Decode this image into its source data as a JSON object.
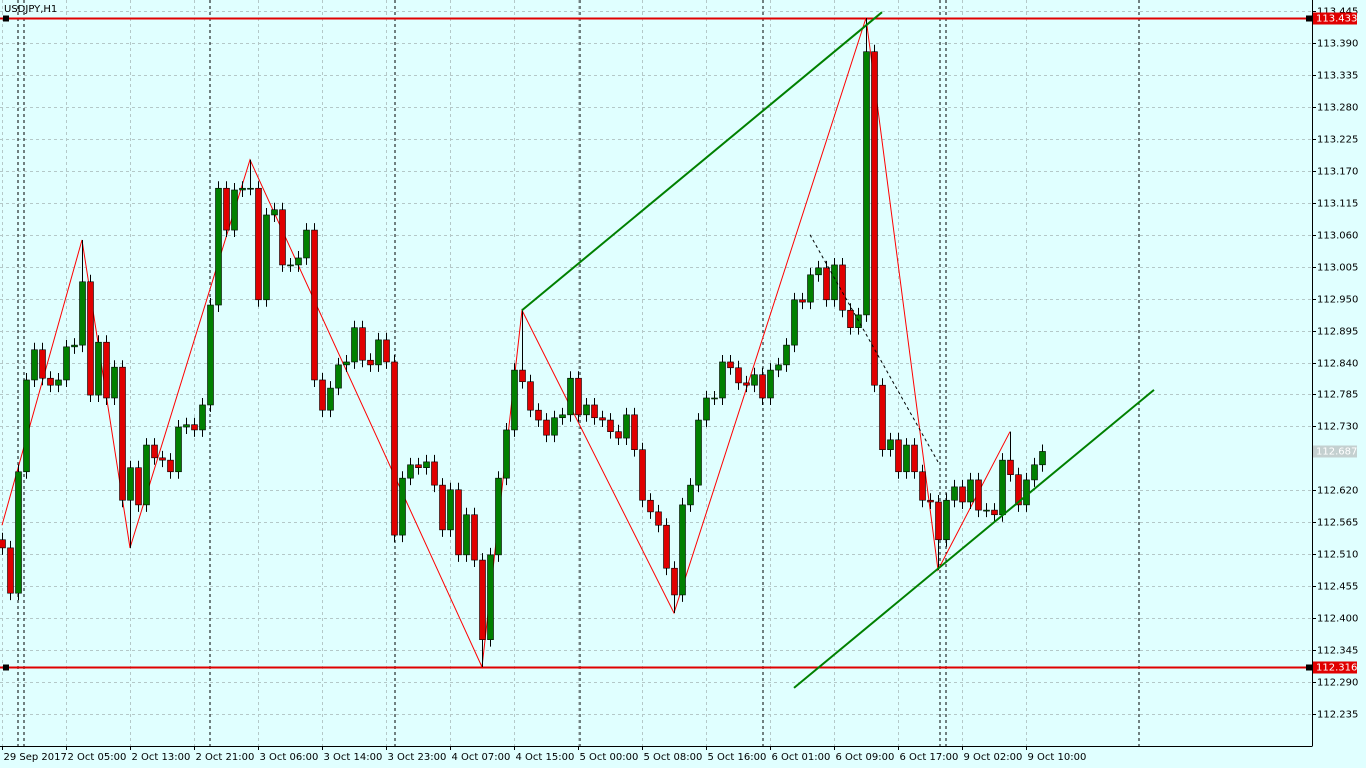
{
  "chart_data": {
    "type": "candlestick",
    "title": "USDJPY,H1",
    "categories": [
      "29 Sep 2017",
      null,
      null,
      null,
      null,
      null,
      null,
      null,
      "2 Oct 05:00",
      null,
      null,
      null,
      null,
      null,
      null,
      null,
      "2 Oct 13:00",
      null,
      null,
      null,
      null,
      null,
      null,
      null,
      "2 Oct 21:00",
      null,
      null,
      null,
      null,
      null,
      null,
      null,
      "3 Oct 06:00",
      null,
      null,
      null,
      null,
      null,
      null,
      null,
      "3 Oct 14:00",
      null,
      null,
      null,
      null,
      null,
      null,
      null,
      "3 Oct 23:00",
      null,
      null,
      null,
      null,
      null,
      null,
      null,
      "4 Oct 07:00",
      null,
      null,
      null,
      null,
      null,
      null,
      null,
      "4 Oct 15:00",
      null,
      null,
      null,
      null,
      null,
      null,
      null,
      "5 Oct 00:00",
      null,
      null,
      null,
      null,
      null,
      null,
      null,
      "5 Oct 08:00",
      null,
      null,
      null,
      null,
      null,
      null,
      null,
      "5 Oct 16:00",
      null,
      null,
      null,
      null,
      null,
      null,
      null,
      "6 Oct 01:00",
      null,
      null,
      null,
      null,
      null,
      null,
      null,
      "6 Oct 09:00",
      null,
      null,
      null,
      null,
      null,
      null,
      null,
      "6 Oct 17:00",
      null,
      null,
      null,
      null,
      null,
      null,
      null,
      "9 Oct 02:00",
      null,
      null,
      null,
      null,
      null,
      null,
      null,
      "9 Oct 10:00",
      null,
      null
    ],
    "open": [
      112.535,
      112.521,
      112.443,
      112.652,
      112.81,
      112.862,
      112.813,
      112.801,
      112.81,
      112.867,
      112.87,
      112.979,
      112.784,
      112.875,
      112.779,
      112.832,
      112.603,
      112.659,
      112.595,
      112.698,
      112.676,
      112.672,
      112.652,
      112.729,
      112.733,
      112.724,
      112.767,
      112.939,
      113.14,
      113.068,
      113.137,
      113.14,
      113.14,
      112.948,
      113.094,
      113.103,
      113.008,
      113.008,
      113.02,
      113.068,
      112.81,
      112.758,
      112.796,
      112.836,
      112.841,
      112.9,
      112.844,
      112.836,
      112.879,
      112.841,
      112.543,
      112.641,
      112.664,
      112.659,
      112.669,
      112.629,
      112.552,
      112.621,
      112.509,
      112.578,
      112.5,
      112.363,
      112.509,
      112.641,
      112.724,
      112.827,
      112.807,
      112.758,
      112.741,
      112.715,
      112.745,
      112.75,
      112.813,
      112.75,
      112.767,
      112.745,
      112.741,
      112.721,
      112.71,
      112.75,
      112.69,
      112.603,
      112.583,
      112.56,
      112.486,
      112.44,
      112.595,
      112.629,
      112.741,
      112.779,
      112.779,
      112.841,
      112.831,
      112.805,
      112.801,
      112.819,
      112.779,
      112.827,
      112.836,
      112.87,
      112.948,
      112.944,
      112.991,
      113.003,
      112.948,
      113.008,
      112.93,
      112.9,
      112.922,
      113.375,
      112.801,
      112.69,
      112.707,
      112.652,
      112.698,
      112.652,
      112.603,
      112.6,
      112.535,
      112.603,
      112.626,
      112.6,
      112.638,
      112.586,
      112.586,
      112.578,
      112.672,
      112.647,
      112.595,
      112.638,
      112.664
    ],
    "high": [
      112.547,
      112.533,
      112.664,
      112.822,
      112.874,
      112.874,
      112.825,
      112.822,
      112.879,
      112.882,
      113.051,
      112.991,
      112.887,
      112.887,
      112.844,
      112.844,
      112.671,
      112.671,
      112.71,
      112.71,
      112.688,
      112.684,
      112.741,
      112.745,
      112.745,
      112.779,
      112.951,
      113.152,
      113.152,
      113.149,
      113.152,
      113.189,
      113.152,
      113.106,
      113.115,
      113.115,
      113.02,
      113.032,
      113.08,
      113.08,
      112.822,
      112.808,
      112.848,
      112.853,
      112.912,
      112.912,
      112.856,
      112.891,
      112.891,
      112.853,
      112.653,
      112.676,
      112.676,
      112.681,
      112.681,
      112.641,
      112.633,
      112.633,
      112.59,
      112.59,
      112.512,
      112.521,
      112.653,
      112.736,
      112.839,
      112.931,
      112.819,
      112.77,
      112.753,
      112.757,
      112.762,
      112.825,
      112.825,
      112.779,
      112.779,
      112.757,
      112.753,
      112.733,
      112.762,
      112.762,
      112.702,
      112.615,
      112.595,
      112.572,
      112.498,
      112.607,
      112.641,
      112.753,
      112.791,
      112.791,
      112.853,
      112.853,
      112.843,
      112.817,
      112.831,
      112.831,
      112.839,
      112.848,
      112.882,
      112.96,
      112.96,
      113.003,
      113.015,
      113.015,
      113.02,
      113.02,
      112.942,
      112.934,
      113.433,
      113.387,
      112.813,
      112.719,
      112.719,
      112.71,
      112.71,
      112.664,
      112.615,
      112.612,
      112.615,
      112.638,
      112.638,
      112.65,
      112.65,
      112.598,
      112.598,
      112.684,
      112.721,
      112.659,
      112.65,
      112.676,
      112.699
    ],
    "low": [
      112.509,
      112.431,
      112.431,
      112.64,
      112.798,
      112.801,
      112.789,
      112.789,
      112.798,
      112.855,
      112.858,
      112.772,
      112.772,
      112.767,
      112.767,
      112.591,
      112.521,
      112.583,
      112.583,
      112.664,
      112.66,
      112.64,
      112.64,
      112.717,
      112.712,
      112.712,
      112.755,
      112.927,
      113.056,
      113.056,
      113.125,
      113.128,
      112.936,
      112.936,
      113.082,
      112.996,
      112.996,
      112.996,
      113.008,
      112.798,
      112.746,
      112.746,
      112.784,
      112.824,
      112.829,
      112.832,
      112.824,
      112.824,
      112.829,
      112.531,
      112.531,
      112.629,
      112.647,
      112.647,
      112.617,
      112.54,
      112.54,
      112.497,
      112.497,
      112.488,
      112.316,
      112.351,
      112.497,
      112.629,
      112.712,
      112.795,
      112.746,
      112.729,
      112.703,
      112.703,
      112.733,
      112.738,
      112.738,
      112.738,
      112.733,
      112.729,
      112.709,
      112.698,
      112.698,
      112.678,
      112.591,
      112.571,
      112.548,
      112.474,
      112.409,
      112.428,
      112.583,
      112.617,
      112.729,
      112.767,
      112.767,
      112.819,
      112.793,
      112.789,
      112.789,
      112.767,
      112.767,
      112.815,
      112.824,
      112.858,
      112.932,
      112.932,
      112.979,
      112.936,
      112.936,
      112.918,
      112.888,
      112.888,
      112.91,
      112.789,
      112.678,
      112.678,
      112.64,
      112.64,
      112.64,
      112.591,
      112.588,
      112.483,
      112.523,
      112.591,
      112.588,
      112.588,
      112.574,
      112.574,
      112.566,
      112.566,
      112.635,
      112.583,
      112.583,
      112.626,
      112.652
    ],
    "close": [
      112.521,
      112.443,
      112.652,
      112.81,
      112.862,
      112.813,
      112.801,
      112.81,
      112.867,
      112.87,
      112.979,
      112.784,
      112.875,
      112.779,
      112.832,
      112.603,
      112.659,
      112.595,
      112.698,
      112.676,
      112.672,
      112.652,
      112.729,
      112.733,
      112.724,
      112.767,
      112.939,
      113.14,
      113.068,
      113.137,
      113.14,
      113.14,
      112.948,
      113.094,
      113.103,
      113.008,
      113.008,
      113.02,
      113.068,
      112.81,
      112.758,
      112.796,
      112.836,
      112.841,
      112.9,
      112.844,
      112.836,
      112.879,
      112.841,
      112.543,
      112.641,
      112.664,
      112.659,
      112.669,
      112.629,
      112.552,
      112.621,
      112.509,
      112.578,
      112.5,
      112.363,
      112.509,
      112.641,
      112.724,
      112.827,
      112.807,
      112.758,
      112.741,
      112.715,
      112.745,
      112.75,
      112.813,
      112.75,
      112.767,
      112.745,
      112.741,
      112.721,
      112.71,
      112.75,
      112.69,
      112.603,
      112.583,
      112.56,
      112.486,
      112.44,
      112.595,
      112.629,
      112.741,
      112.779,
      112.779,
      112.841,
      112.831,
      112.805,
      112.801,
      112.819,
      112.779,
      112.827,
      112.836,
      112.87,
      112.948,
      112.944,
      112.991,
      113.003,
      112.948,
      113.008,
      112.93,
      112.9,
      112.922,
      113.375,
      112.801,
      112.69,
      112.707,
      112.652,
      112.698,
      112.652,
      112.603,
      112.6,
      112.535,
      112.603,
      112.626,
      112.6,
      112.638,
      112.586,
      112.586,
      112.578,
      112.672,
      112.647,
      112.595,
      112.638,
      112.664,
      112.687
    ],
    "colors": {
      "up": "#008000",
      "down": "#e00000",
      "wick": "#000000"
    },
    "ylim": [
      112.18,
      113.464
    ],
    "yticks": [
      112.235,
      {
        "value": 112.29,
        "label": "112.290"
      },
      112.345,
      {
        "value": 112.4,
        "label": "112.400"
      },
      112.455,
      {
        "value": 112.51,
        "label": "112.510"
      },
      112.565,
      {
        "value": 112.62,
        "label": "112.620"
      },
      {
        "value": 112.73,
        "label": "112.730"
      },
      112.785,
      {
        "value": 112.84,
        "label": "112.840"
      },
      112.895,
      {
        "value": 112.95,
        "label": "112.950"
      },
      113.005,
      {
        "value": 113.06,
        "label": "113.060"
      },
      113.115,
      {
        "value": 113.17,
        "label": "113.170"
      },
      113.225,
      {
        "value": 113.28,
        "label": "113.280"
      },
      113.335,
      {
        "value": 113.39,
        "label": "113.390"
      },
      113.445
    ],
    "grid": true,
    "levels": [
      {
        "value": 113.433,
        "color": "#e00000"
      },
      {
        "value": 112.316,
        "color": "#e00000"
      }
    ],
    "last_price": 112.687,
    "zigzag": {
      "x": [
        0,
        10,
        16,
        31,
        60,
        65,
        84,
        108,
        117,
        126
      ],
      "values": [
        112.56,
        113.051,
        112.521,
        113.189,
        112.316,
        112.93,
        112.409,
        113.433,
        112.483,
        112.721
      ],
      "color": "#ff0000"
    },
    "trendlines": [
      {
        "x": [
          65,
          110
        ],
        "values": [
          112.93,
          113.443
        ],
        "color": "#008000",
        "style": "solid"
      },
      {
        "x": [
          99,
          144
        ],
        "values": [
          112.28,
          112.793
        ],
        "color": "#008000",
        "style": "solid"
      },
      {
        "x": [
          101,
          117
        ],
        "values": [
          113.06,
          112.669
        ],
        "color": "#000000",
        "style": "dashed"
      }
    ]
  }
}
